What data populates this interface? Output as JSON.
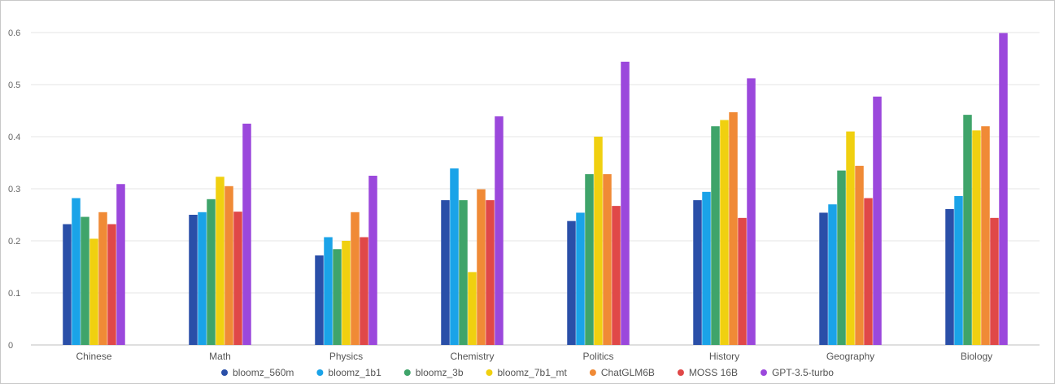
{
  "chart_data": {
    "type": "bar",
    "categories": [
      "Chinese",
      "Math",
      "Physics",
      "Chemistry",
      "Politics",
      "History",
      "Geography",
      "Biology"
    ],
    "ylim": [
      0,
      0.6
    ],
    "yticks": [
      "0",
      "0.1",
      "0.2",
      "0.3",
      "0.4",
      "0.5",
      "0.6"
    ],
    "grid": true,
    "legend_position": "bottom",
    "series": [
      {
        "name": "bloomz_560m",
        "color": "#2a4fa8",
        "values": [
          0.232,
          0.25,
          0.172,
          0.278,
          0.238,
          0.278,
          0.254,
          0.261
        ]
      },
      {
        "name": "bloomz_1b1",
        "color": "#1aa3e8",
        "values": [
          0.282,
          0.255,
          0.207,
          0.339,
          0.254,
          0.294,
          0.27,
          0.286
        ]
      },
      {
        "name": "bloomz_3b",
        "color": "#3fa46a",
        "values": [
          0.246,
          0.28,
          0.184,
          0.278,
          0.328,
          0.42,
          0.335,
          0.442
        ]
      },
      {
        "name": "bloomz_7b1_mt",
        "color": "#f0d010",
        "values": [
          0.204,
          0.323,
          0.2,
          0.14,
          0.4,
          0.432,
          0.41,
          0.412
        ]
      },
      {
        "name": "ChatGLM6B",
        "color": "#f08a36",
        "values": [
          0.255,
          0.305,
          0.255,
          0.299,
          0.328,
          0.447,
          0.344,
          0.42
        ]
      },
      {
        "name": "MOSS 16B",
        "color": "#e04848",
        "values": [
          0.232,
          0.256,
          0.207,
          0.278,
          0.267,
          0.244,
          0.282,
          0.244
        ]
      },
      {
        "name": "GPT-3.5-turbo",
        "color": "#9b48dc",
        "values": [
          0.309,
          0.425,
          0.325,
          0.439,
          0.544,
          0.512,
          0.477,
          0.599
        ]
      }
    ]
  }
}
